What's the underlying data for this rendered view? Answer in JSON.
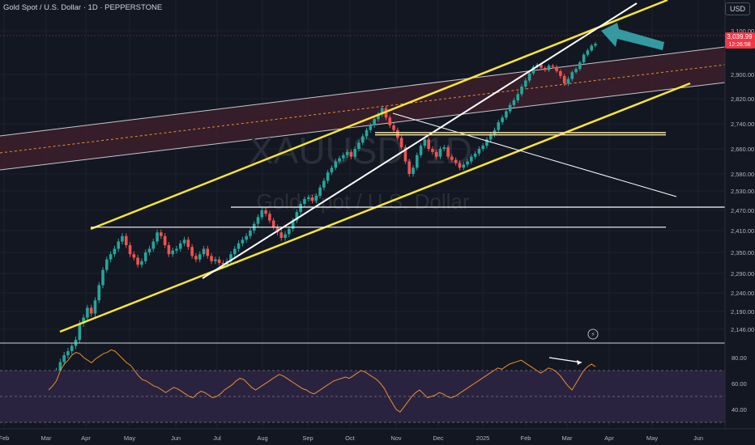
{
  "header": {
    "title": "Gold Spot / U.S. Dollar · 1D · PEPPERSTONE",
    "currency_button": "USD"
  },
  "watermark": {
    "symbol": "XAUUSD, 1D",
    "name": "Gold Spot / U.S. Dollar"
  },
  "price_tag": {
    "value": "3,039.99",
    "countdown": "12:26:58",
    "color": "#f23645"
  },
  "colors": {
    "channel": "#f7e634",
    "trend_white": "#ffffff",
    "arrow": "#3aa7ae",
    "rsi_line": "#e8902f",
    "band_fill": "#3c1f2b"
  },
  "chart_data": [
    {
      "type": "line",
      "title": "",
      "series": [
        {
          "values": [
            2032,
            2035,
            2043,
            2065,
            2082,
            2092,
            2105,
            2120,
            2160,
            2175,
            2200,
            2185,
            2220,
            2260,
            2300,
            2330,
            2345,
            2360,
            2380,
            2395,
            2370,
            2345,
            2335,
            2315,
            2325,
            2350,
            2360,
            2380,
            2405,
            2395,
            2370,
            2345,
            2355,
            2360,
            2375,
            2385,
            2365,
            2340,
            2330,
            2345,
            2360,
            2340,
            2325,
            2330,
            2320,
            2315,
            2325,
            2345,
            2360,
            2375,
            2385,
            2395,
            2410,
            2430,
            2450,
            2470,
            2460,
            2440,
            2420,
            2405,
            2390,
            2400,
            2415,
            2440,
            2465,
            2490,
            2505,
            2510,
            2500,
            2515,
            2540,
            2560,
            2585,
            2600,
            2620,
            2630,
            2640,
            2650,
            2635,
            2660,
            2680,
            2700,
            2720,
            2735,
            2755,
            2770,
            2790,
            2760,
            2735,
            2720,
            2695,
            2665,
            2620,
            2580,
            2600,
            2640,
            2670,
            2690,
            2660,
            2650,
            2635,
            2660,
            2665,
            2635,
            2625,
            2615,
            2600,
            2610,
            2620,
            2635,
            2645,
            2660,
            2670,
            2690,
            2705,
            2720,
            2745,
            2760,
            2780,
            2800,
            2815,
            2835,
            2860,
            2880,
            2905,
            2935,
            2945,
            2930,
            2920,
            2940,
            2935,
            2915,
            2895,
            2870,
            2885,
            2910,
            2925,
            2955,
            2990,
            3010,
            3032,
            3040
          ]
        }
      ],
      "x_labels": [
        "Feb",
        "Mar",
        "Apr",
        "May",
        "Jun",
        "Jul",
        "Aug",
        "Sep",
        "Oct",
        "Nov",
        "Dec",
        "2025",
        "Feb",
        "Mar",
        "Apr",
        "May",
        "Jun"
      ],
      "y_ticks": [
        "3,100.00",
        "2,900.00",
        "2,820.00",
        "2,740.00",
        "2,660.00",
        "2,580.00",
        "2,530.00",
        "2,470.00",
        "2,410.00",
        "2,350.00",
        "2,290.00",
        "2,240.00",
        "2,190.00",
        "2,146.00"
      ],
      "horizontal_levels": [
        2480,
        2420,
        2712,
        2705
      ],
      "annotation": "⚡"
    },
    {
      "type": "line",
      "title": "",
      "series": [
        {
          "values": [
            55,
            58,
            62,
            70,
            75,
            78,
            82,
            84,
            83,
            80,
            78,
            76,
            79,
            81,
            83,
            84,
            86,
            85,
            82,
            79,
            76,
            74,
            70,
            66,
            63,
            62,
            60,
            58,
            57,
            55,
            53,
            55,
            57,
            56,
            54,
            52,
            50,
            49,
            52,
            54,
            53,
            51,
            49,
            50,
            52,
            55,
            57,
            59,
            62,
            64,
            63,
            60,
            57,
            55,
            57,
            59,
            61,
            63,
            65,
            67,
            66,
            64,
            62,
            60,
            58,
            56,
            55,
            53,
            52,
            54,
            56,
            58,
            60,
            62,
            63,
            64,
            65,
            64,
            66,
            68,
            70,
            69,
            67,
            65,
            63,
            60,
            56,
            50,
            45,
            40,
            38,
            42,
            46,
            50,
            53,
            55,
            52,
            49,
            50,
            51,
            53,
            52,
            50,
            49,
            50,
            52,
            54,
            56,
            58,
            60,
            62,
            64,
            66,
            68,
            70,
            72,
            71,
            73,
            75,
            76,
            77,
            78,
            76,
            74,
            72,
            70,
            68,
            70,
            72,
            71,
            69,
            66,
            62,
            58,
            55,
            60,
            65,
            70,
            73,
            75,
            73
          ]
        }
      ],
      "y_ticks": [
        "80.00",
        "60.00",
        "40.00"
      ],
      "bands": [
        70,
        50
      ]
    }
  ]
}
